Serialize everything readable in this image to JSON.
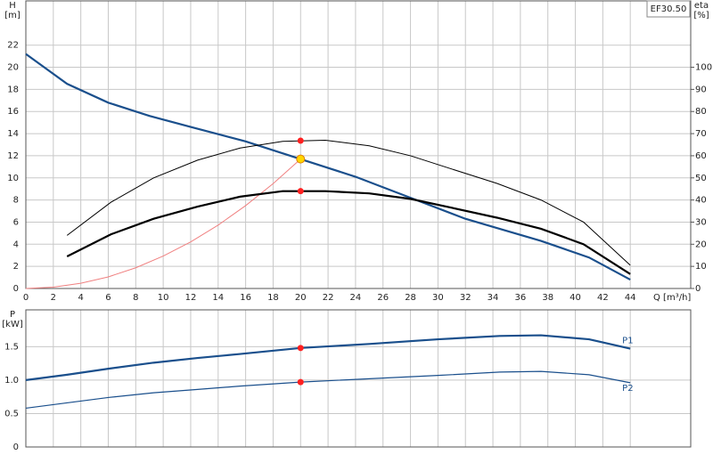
{
  "chart_data": [
    {
      "type": "line",
      "title": "EF30.50",
      "ylabel": [
        "H",
        "[m]"
      ],
      "y2label": [
        "eta",
        "[%]"
      ],
      "xlabel": "Q [m³/h]",
      "xlim": [
        0,
        48.4
      ],
      "xticks": [
        0,
        2,
        4,
        6,
        8,
        10,
        12,
        14,
        16,
        18,
        20,
        22,
        24,
        26,
        28,
        30,
        32,
        34,
        36,
        38,
        40,
        42,
        44
      ],
      "ylim": [
        0,
        26
      ],
      "yticks": [
        0,
        2,
        4,
        6,
        8,
        10,
        12,
        14,
        16,
        18,
        20,
        22
      ],
      "y2lim": [
        0,
        130
      ],
      "y2ticks": [
        0,
        10,
        20,
        30,
        40,
        50,
        60,
        70,
        80,
        90,
        100
      ],
      "grid": true,
      "series": [
        {
          "color": "#f08080",
          "width": 1,
          "x": [
            0,
            2,
            4,
            6,
            8,
            10,
            12,
            14,
            16,
            18,
            20
          ],
          "values": [
            0,
            0.12,
            0.47,
            1.05,
            1.87,
            2.93,
            4.21,
            5.73,
            7.49,
            9.48,
            11.7
          ]
        },
        {
          "color": "#1a4f8c",
          "width": 2.2,
          "x": [
            0,
            3,
            6,
            9,
            12,
            16,
            20,
            24,
            28,
            32,
            37.5,
            41,
            44
          ],
          "values": [
            21.2,
            18.5,
            16.8,
            15.6,
            14.6,
            13.3,
            11.7,
            10.1,
            8.2,
            6.3,
            4.3,
            2.8,
            0.8
          ]
        },
        {
          "color": "#000000",
          "width": 1,
          "axis": "y2",
          "x": [
            3,
            6.2,
            9.3,
            12.5,
            15.6,
            18.7,
            21.8,
            25,
            28,
            31,
            34.3,
            37.5,
            40.6,
            44
          ],
          "values": [
            24,
            39,
            50,
            58,
            63.5,
            66.5,
            67,
            64.5,
            60,
            54,
            47.5,
            40,
            30,
            10.5
          ]
        },
        {
          "color": "#000000",
          "width": 2.2,
          "axis": "y2",
          "x": [
            3,
            6.2,
            9.3,
            12.5,
            15.6,
            18.7,
            21.8,
            25,
            28,
            31,
            34.3,
            37.5,
            40.6,
            44
          ],
          "values": [
            14.5,
            24.5,
            31.5,
            37,
            41.5,
            44,
            44,
            43,
            40.5,
            36.5,
            32,
            27,
            20,
            6.5
          ]
        },
        {
          "color": "#ff2020",
          "marker": true,
          "axis": "y2",
          "x": [
            20,
            20
          ],
          "values": [
            66.8,
            44
          ]
        },
        {
          "color": "#ffd700",
          "marker": true,
          "x": [
            20
          ],
          "values": [
            11.7
          ]
        }
      ]
    },
    {
      "type": "line",
      "ylabel": [
        "P",
        "[kW]"
      ],
      "xlim": [
        0,
        48.4
      ],
      "xticks": [
        0,
        2,
        4,
        6,
        8,
        10,
        12,
        14,
        16,
        18,
        20,
        22,
        24,
        26,
        28,
        30,
        32,
        34,
        36,
        38,
        40,
        42,
        44
      ],
      "ylim": [
        0,
        2.05
      ],
      "yticks": [
        0,
        0.5,
        {
          "value": 1,
          "label": "1.0"
        },
        1.5
      ],
      "grid": true,
      "series": [
        {
          "name": "P1",
          "color": "#1a4f8c",
          "width": 2.2,
          "x": [
            0,
            3,
            6,
            9.3,
            12.5,
            15.6,
            20,
            25,
            30,
            34.5,
            37.5,
            41,
            44
          ],
          "values": [
            1,
            1.08,
            1.17,
            1.26,
            1.33,
            1.39,
            1.48,
            1.54,
            1.61,
            1.66,
            1.67,
            1.61,
            1.47
          ]
        },
        {
          "name": "P2",
          "color": "#1a4f8c",
          "width": 1.2,
          "x": [
            0,
            3,
            6,
            9.3,
            12.5,
            15.6,
            20,
            25,
            30,
            34.5,
            37.5,
            41,
            44
          ],
          "values": [
            0.58,
            0.66,
            0.74,
            0.81,
            0.86,
            0.91,
            0.97,
            1.02,
            1.07,
            1.12,
            1.13,
            1.08,
            0.96
          ]
        },
        {
          "color": "#ff2020",
          "marker": true,
          "x": [
            20,
            20
          ],
          "values": [
            1.48,
            0.97
          ]
        }
      ]
    }
  ]
}
